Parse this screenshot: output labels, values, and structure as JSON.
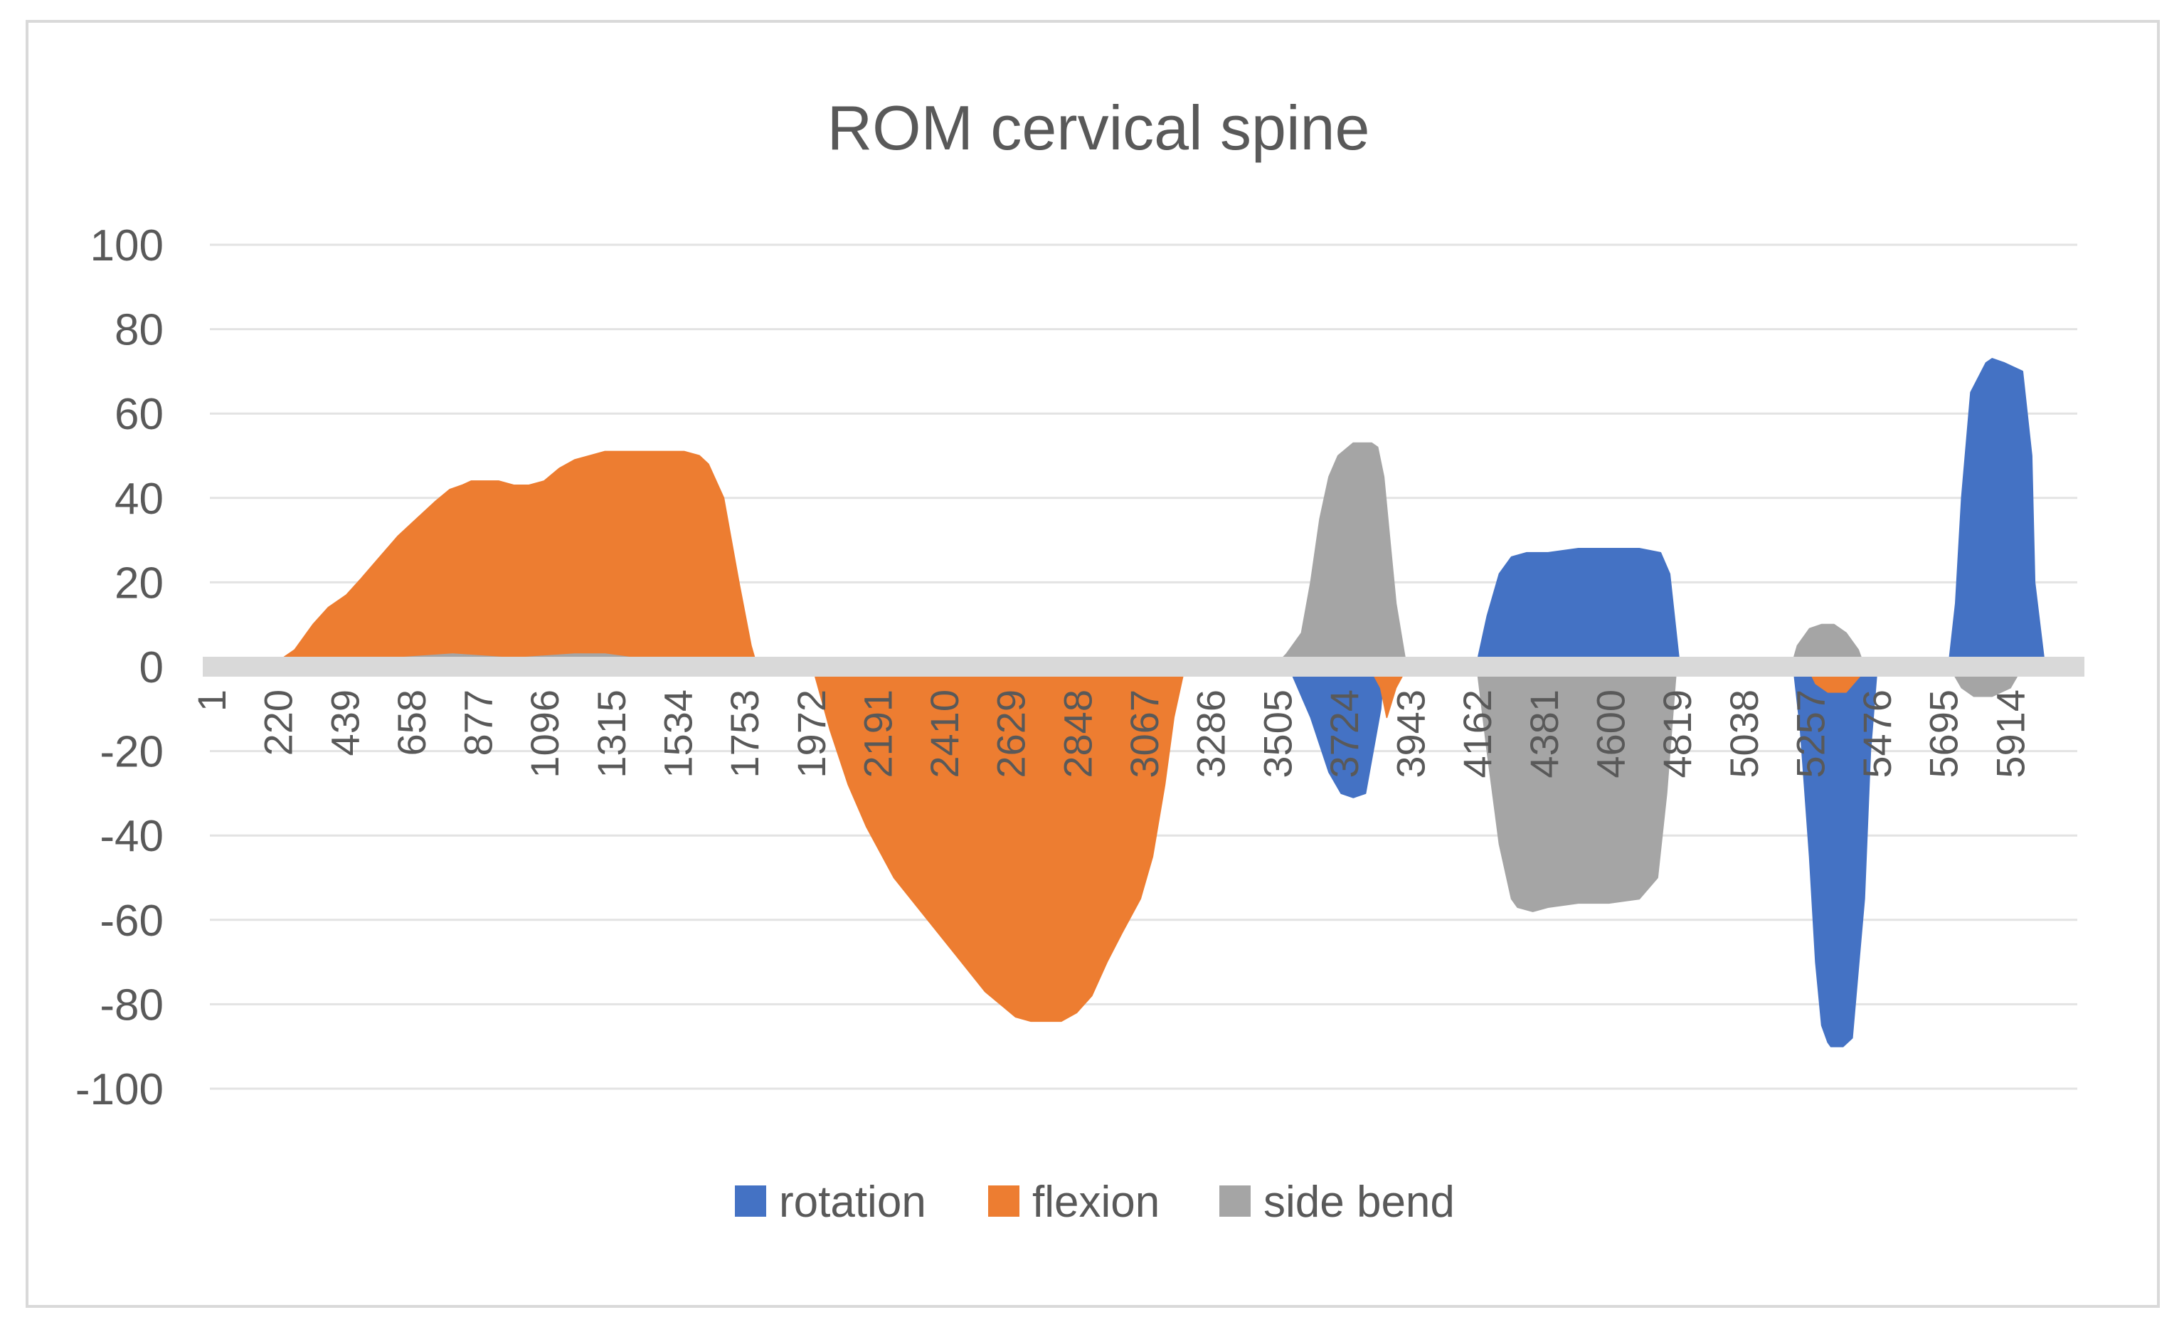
{
  "chart_data": {
    "type": "area",
    "title": "ROM cervical spine",
    "xlabel": "",
    "ylabel": "",
    "ylim": [
      -100,
      100
    ],
    "yticks": [
      100,
      80,
      60,
      40,
      20,
      0,
      -20,
      -40,
      -60,
      -80,
      -100
    ],
    "xlim": [
      1,
      6140
    ],
    "categories": [
      "1",
      "220",
      "439",
      "658",
      "877",
      "1096",
      "1315",
      "1534",
      "1753",
      "1972",
      "2191",
      "2410",
      "2629",
      "2848",
      "3067",
      "3286",
      "3505",
      "3724",
      "3943",
      "4162",
      "4381",
      "4600",
      "4819",
      "5038",
      "5257",
      "5476",
      "5695",
      "5914"
    ],
    "grid": true,
    "legend_position": "bottom",
    "series": [
      {
        "name": "rotation",
        "color": "#4472c4",
        "x": [
          3560,
          3620,
          3680,
          3720,
          3760,
          3800,
          3850,
          3860,
          4170,
          4200,
          4240,
          4280,
          4330,
          4400,
          4500,
          4600,
          4700,
          4770,
          4800,
          4830,
          5210,
          5230,
          5260,
          5280,
          5300,
          5320,
          5330,
          5370,
          5400,
          5440,
          5460,
          5480,
          5720,
          5740,
          5760,
          5790,
          5840,
          5860,
          5900,
          5960,
          5990,
          6000,
          6030
        ],
        "y": [
          -2,
          -12,
          -25,
          -30,
          -31,
          -30,
          -10,
          -1,
          2,
          12,
          22,
          26,
          27,
          27,
          28,
          28,
          28,
          27,
          22,
          2,
          -2,
          -15,
          -45,
          -70,
          -85,
          -89,
          -90,
          -90,
          -88,
          -55,
          -20,
          -2,
          2,
          15,
          40,
          65,
          72,
          73,
          72,
          70,
          50,
          20,
          2
        ]
      },
      {
        "name": "flexion",
        "color": "#ed7d31",
        "x": [
          240,
          280,
          340,
          390,
          450,
          500,
          560,
          620,
          680,
          740,
          790,
          830,
          860,
          900,
          950,
          1000,
          1050,
          1100,
          1150,
          1200,
          1250,
          1300,
          1350,
          1400,
          1450,
          1500,
          1560,
          1610,
          1640,
          1690,
          1740,
          1780,
          1800,
          1990,
          2040,
          2100,
          2160,
          2250,
          2350,
          2450,
          2550,
          2600,
          2650,
          2700,
          2750,
          2800,
          2850,
          2900,
          2950,
          3000,
          3060,
          3100,
          3140,
          3170,
          3200,
          3820,
          3850,
          3870,
          3900,
          3930,
          5260,
          5280,
          5320,
          5380,
          5440
        ],
        "y": [
          2,
          4,
          10,
          14,
          17,
          21,
          26,
          31,
          35,
          39,
          42,
          43,
          44,
          44,
          44,
          43,
          43,
          44,
          47,
          49,
          50,
          51,
          51,
          51,
          51,
          51,
          51,
          50,
          48,
          40,
          20,
          5,
          0,
          -2,
          -15,
          -28,
          -38,
          -50,
          -59,
          -68,
          -77,
          -80,
          -83,
          -84,
          -84,
          -84,
          -82,
          -78,
          -70,
          -63,
          -55,
          -45,
          -28,
          -12,
          -2,
          -1,
          -5,
          -12,
          -5,
          -1,
          -1,
          -4,
          -6,
          -6,
          -1
        ]
      },
      {
        "name": "side bend",
        "color": "#a5a5a5",
        "x": [
          1,
          200,
          400,
          600,
          800,
          1000,
          1200,
          1300,
          1400,
          1500,
          1600,
          1700,
          1740,
          1990,
          2100,
          2400,
          2640,
          2860,
          3500,
          3540,
          3570,
          3590,
          3620,
          3650,
          3680,
          3710,
          3760,
          3800,
          3820,
          3840,
          3860,
          3880,
          3900,
          3930,
          4170,
          4200,
          4240,
          4280,
          4300,
          4350,
          4400,
          4500,
          4600,
          4700,
          4760,
          4790,
          4820,
          5200,
          5220,
          5260,
          5300,
          5340,
          5380,
          5420,
          5440,
          5720,
          5760,
          5800,
          5860,
          5920,
          5960
        ],
        "y": [
          1,
          1,
          2,
          2,
          3,
          2,
          3,
          3,
          2,
          2,
          2,
          2,
          0,
          0,
          0,
          0,
          2,
          2,
          0,
          3,
          6,
          8,
          20,
          35,
          45,
          50,
          53,
          53,
          53,
          52,
          45,
          30,
          15,
          2,
          -2,
          -20,
          -42,
          -55,
          -57,
          -58,
          -57,
          -56,
          -56,
          -55,
          -50,
          -30,
          -2,
          0,
          5,
          9,
          10,
          10,
          8,
          4,
          0,
          0,
          -5,
          -7,
          -7,
          -5,
          0
        ]
      }
    ]
  }
}
